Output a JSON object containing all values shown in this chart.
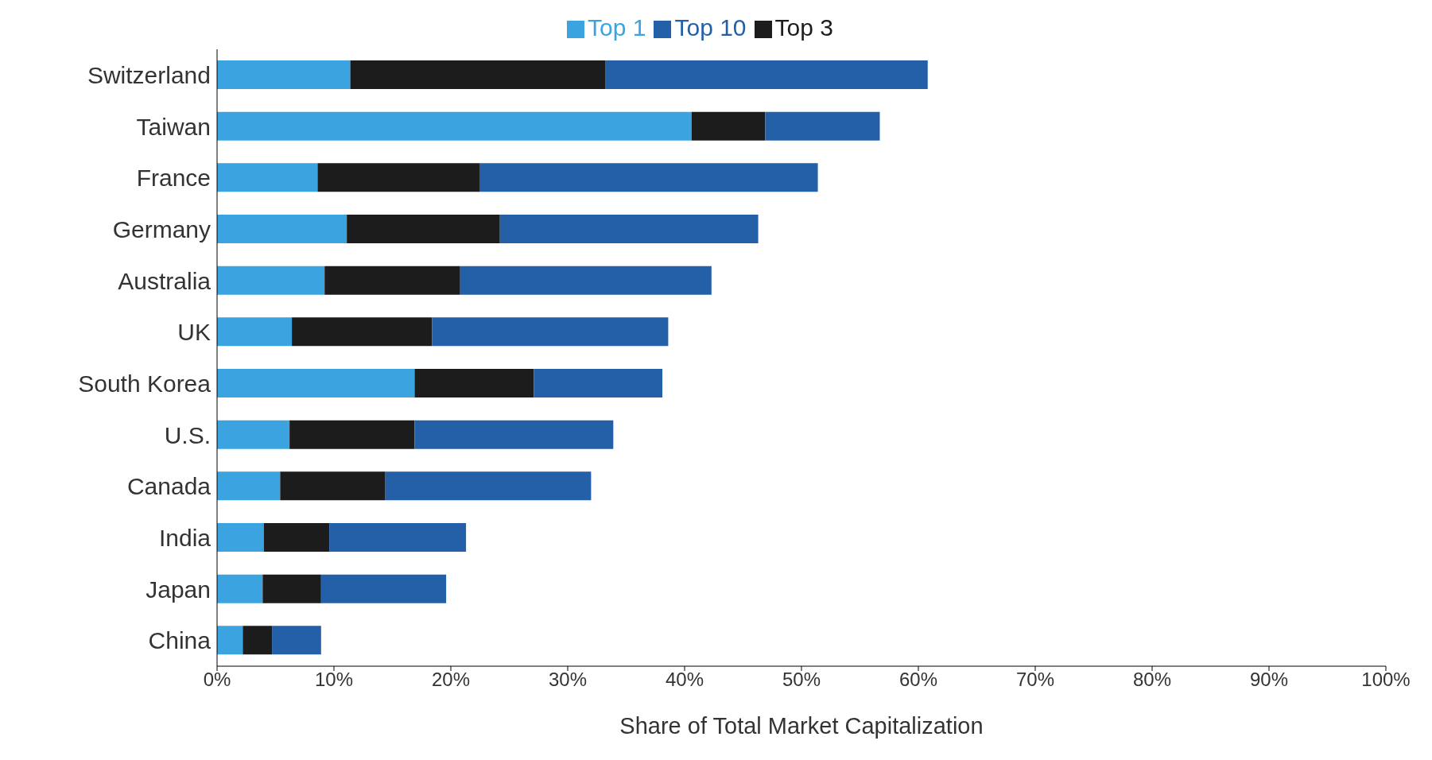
{
  "chart_data": {
    "type": "bar",
    "orientation": "horizontal",
    "stacked": true,
    "xlabel": "Share of Total Market Capitalization",
    "categories": [
      "Switzerland",
      "Taiwan",
      "France",
      "Germany",
      "Australia",
      "UK",
      "South Korea",
      "U.S.",
      "Canada",
      "India",
      "Japan",
      "China"
    ],
    "series": [
      {
        "name": "Top 1",
        "color": "#3ba3e0",
        "values": [
          11.4,
          40.6,
          8.6,
          11.1,
          9.2,
          6.4,
          16.9,
          6.2,
          5.4,
          4.0,
          3.9,
          2.2
        ]
      },
      {
        "name": "Top 3",
        "color": "#1c1c1c",
        "values": [
          21.8,
          6.3,
          13.9,
          13.1,
          11.6,
          12.0,
          10.2,
          10.7,
          9.0,
          5.6,
          5.0,
          2.5
        ]
      },
      {
        "name": "Top 10",
        "color": "#2460a7",
        "values": [
          27.6,
          9.8,
          28.9,
          22.1,
          21.5,
          20.2,
          11.0,
          17.0,
          17.6,
          11.7,
          10.7,
          4.2
        ]
      }
    ],
    "xlim": [
      0,
      100
    ],
    "xticks": [
      {
        "value": 0,
        "label": "0%"
      },
      {
        "value": 10,
        "label": "10%"
      },
      {
        "value": 20,
        "label": "20%"
      },
      {
        "value": 30,
        "label": "30%"
      },
      {
        "value": 40,
        "label": "40%"
      },
      {
        "value": 50,
        "label": "50%"
      },
      {
        "value": 60,
        "label": "60%"
      },
      {
        "value": 70,
        "label": "70%"
      },
      {
        "value": 80,
        "label": "80%"
      },
      {
        "value": 90,
        "label": "90%"
      },
      {
        "value": 100,
        "label": "100%"
      }
    ],
    "grid": false,
    "legend": "top"
  }
}
